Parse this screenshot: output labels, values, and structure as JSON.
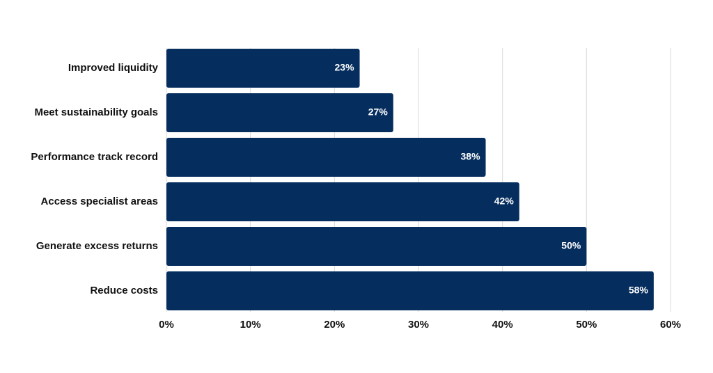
{
  "chart_data": {
    "type": "bar",
    "orientation": "horizontal",
    "categories": [
      "Improved liquidity",
      "Meet sustainability goals",
      "Performance track record",
      "Access specialist areas",
      "Generate excess returns",
      "Reduce costs"
    ],
    "values": [
      23,
      27,
      38,
      42,
      50,
      58
    ],
    "value_labels": [
      "23%",
      "27%",
      "38%",
      "42%",
      "50%",
      "58%"
    ],
    "xlim": [
      0,
      60
    ],
    "x_ticks": [
      0,
      10,
      20,
      30,
      40,
      50,
      60
    ],
    "x_tick_labels": [
      "0%",
      "10%",
      "20%",
      "30%",
      "40%",
      "50%",
      "60%"
    ],
    "title": "",
    "xlabel": "",
    "ylabel": "",
    "grid": "vertical",
    "bar_color": "#052d5e",
    "label_color": "#ffffff"
  }
}
